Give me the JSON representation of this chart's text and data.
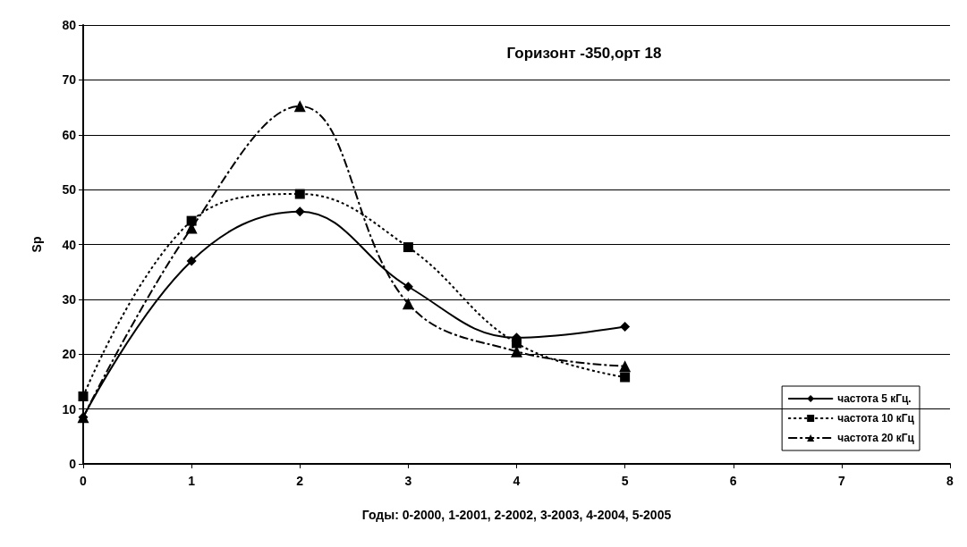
{
  "chart_data": {
    "type": "line",
    "title": "Горизонт -350,орт 18",
    "xlabel": "Годы: 0-2000, 1-2001, 2-2002, 3-2003, 4-2004, 5-2005",
    "ylabel": "Sp",
    "x": [
      0,
      1,
      2,
      3,
      4,
      5
    ],
    "series": [
      {
        "name": "частота 5 кГц.",
        "color": "#000000",
        "marker": "diamond",
        "line_style": "solid",
        "values": [
          8.5,
          37,
          46,
          32.3,
          23,
          25
        ]
      },
      {
        "name": "частота 10 кГц",
        "color": "#000000",
        "marker": "square",
        "line_style": "dotted",
        "values": [
          12.3,
          44.3,
          49.2,
          39.5,
          22,
          15.8
        ]
      },
      {
        "name": "частота 20 кГц",
        "color": "#000000",
        "marker": "triangle",
        "line_style": "dashed",
        "values": [
          8.5,
          43,
          65.2,
          29.2,
          20.5,
          17.8
        ]
      }
    ],
    "xlim": [
      0,
      8
    ],
    "xticks": [
      0,
      1,
      2,
      3,
      4,
      5,
      6,
      7,
      8
    ],
    "ylim": [
      0,
      80
    ],
    "yticks": [
      0,
      10,
      20,
      30,
      40,
      50,
      60,
      70,
      80
    ],
    "grid": "y",
    "legend": "bottom right"
  }
}
